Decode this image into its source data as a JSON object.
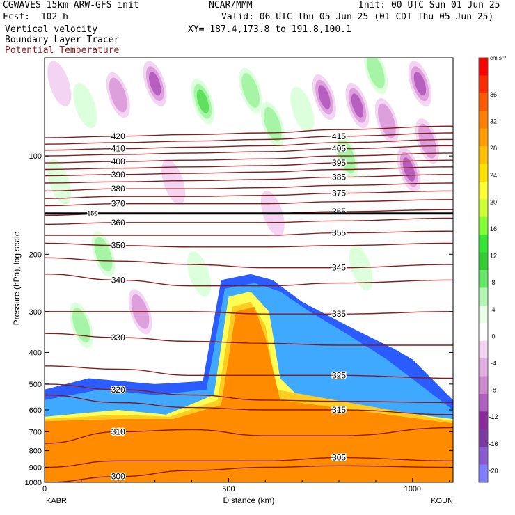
{
  "header": {
    "line1_left": "CGWAVES 15km ARW-GFS init",
    "line1_mid": "NCAR/MMM",
    "line1_right": "Init: 00 UTC Sun 01 Jun 25",
    "line2_left": "Fcst:  102 h",
    "line2_right": "Valid: 06 UTC Thu 05 Jun 25 (01 CDT Thu 05 Jun 25)",
    "line3_left": "Vertical velocity",
    "line3_right": "XY= 187.4,173.8 to 191.8,100.1",
    "line4_left": "Boundary Layer Tracer",
    "line5_left": "Potential Temperature"
  },
  "colors": {
    "theta": "#8b1a1a",
    "tracer_levels": [
      "#2a5cff",
      "#3fa9ff",
      "#6fd3ff",
      "#ffff55",
      "#ffcc22",
      "#ff8c00"
    ],
    "w_up": [
      "#dcffdc",
      "#a6f5a6",
      "#5fe05f",
      "#2fc92f"
    ],
    "w_down": [
      "#f3d4f3",
      "#dda0dd",
      "#b65fc0",
      "#8a2a9a"
    ]
  },
  "chart_data": {
    "type": "heatmap",
    "title": "Vertical velocity / Boundary Layer Tracer / Potential Temperature",
    "xlabel": "Distance (km)",
    "ylabel": "Pressure (hPa), log scale",
    "x_ticks": [
      0,
      500,
      1000
    ],
    "y_ticks": [
      100,
      200,
      300,
      400,
      500,
      600,
      700,
      800,
      900,
      1000
    ],
    "xlim": [
      0,
      1110
    ],
    "ylim": [
      1000,
      50
    ],
    "y_scale": "log",
    "endpoints": {
      "left": "KABR",
      "right": "KOUN"
    },
    "colorbar": {
      "unit": "cm s⁻¹",
      "labels": [
        36,
        32,
        28,
        24,
        20,
        16,
        12,
        8,
        4,
        0,
        -4,
        -8,
        -12,
        -16,
        -20
      ]
    },
    "tropopause_marker": {
      "label": "150",
      "pressure": 150
    },
    "theta_contours": [
      {
        "value": 300,
        "p": [
          1000,
          960,
          920,
          900,
          890,
          900
        ]
      },
      {
        "value": 305,
        "p": [
          900,
          860,
          860,
          860,
          840,
          860
        ]
      },
      {
        "value": 310,
        "p": [
          760,
          700,
          690,
          720,
          720,
          680
        ]
      },
      {
        "value": 315,
        "p": [
          540,
          570,
          590,
          600,
          600,
          620
        ]
      },
      {
        "value": 320,
        "p": [
          500,
          520,
          540,
          560,
          565,
          570
        ]
      },
      {
        "value": 325,
        "p": [
          440,
          450,
          470,
          470,
          470,
          480
        ]
      },
      {
        "value": 330,
        "p": [
          350,
          360,
          370,
          375,
          380,
          380
        ]
      },
      {
        "value": 335,
        "p": [
          300,
          300,
          300,
          305,
          305,
          300
        ]
      },
      {
        "value": 340,
        "p": [
          230,
          240,
          250,
          250,
          245,
          240
        ]
      },
      {
        "value": 345,
        "p": [
          205,
          210,
          215,
          220,
          220,
          215
        ]
      },
      {
        "value": 350,
        "p": [
          185,
          188,
          190,
          190,
          188,
          185
        ]
      },
      {
        "value": 355,
        "p": [
          175,
          175,
          175,
          175,
          172,
          170
        ]
      },
      {
        "value": 360,
        "p": [
          162,
          160,
          160,
          160,
          158,
          155
        ]
      },
      {
        "value": 365,
        "p": [
          152,
          150,
          150,
          150,
          148,
          146
        ]
      },
      {
        "value": 370,
        "p": [
          142,
          140,
          140,
          140,
          138,
          136
        ]
      },
      {
        "value": 375,
        "p": [
          135,
          133,
          133,
          132,
          130,
          128
        ]
      },
      {
        "value": 380,
        "p": [
          128,
          126,
          126,
          125,
          123,
          121
        ]
      },
      {
        "value": 385,
        "p": [
          121,
          120,
          119,
          118,
          116,
          114
        ]
      },
      {
        "value": 390,
        "p": [
          115,
          114,
          113,
          112,
          110,
          108
        ]
      },
      {
        "value": 395,
        "p": [
          110,
          109,
          108,
          107,
          105,
          103
        ]
      },
      {
        "value": 400,
        "p": [
          105,
          104,
          103,
          102,
          100,
          98
        ]
      },
      {
        "value": 405,
        "p": [
          100,
          99,
          98,
          97,
          95,
          93
        ]
      },
      {
        "value": 410,
        "p": [
          96,
          95,
          94,
          93,
          91,
          89
        ]
      },
      {
        "value": 415,
        "p": [
          92,
          91,
          90,
          89,
          87,
          85
        ]
      },
      {
        "value": 420,
        "p": [
          88,
          87,
          86,
          85,
          83,
          81
        ]
      }
    ],
    "theta_x": [
      0,
      200,
      400,
      600,
      800,
      1110
    ],
    "tracer_regions": [
      {
        "level": 0,
        "x": [
          0,
          120,
          300,
          430,
          480,
          560,
          620,
          700,
          820,
          950,
          1000,
          1110,
          1110,
          0
        ],
        "p": [
          520,
          480,
          500,
          490,
          240,
          230,
          240,
          280,
          330,
          390,
          420,
          560,
          1000,
          1000
        ]
      },
      {
        "level": 1,
        "x": [
          0,
          150,
          300,
          440,
          490,
          570,
          640,
          720,
          820,
          930,
          1110,
          1110,
          0
        ],
        "p": [
          560,
          520,
          540,
          520,
          255,
          245,
          260,
          300,
          350,
          420,
          600,
          1000,
          1000
        ]
      },
      {
        "level": 3,
        "x": [
          0,
          200,
          330,
          460,
          500,
          560,
          610,
          640,
          700,
          1110,
          1110,
          0
        ],
        "p": [
          630,
          600,
          620,
          540,
          270,
          260,
          300,
          480,
          560,
          640,
          1000,
          1000
        ]
      },
      {
        "level": 4,
        "x": [
          0,
          200,
          340,
          470,
          510,
          560,
          600,
          630,
          1110,
          1110,
          0
        ],
        "p": [
          640,
          620,
          630,
          560,
          290,
          280,
          330,
          520,
          650,
          1000,
          1000
        ]
      },
      {
        "level": 5,
        "x": [
          0,
          200,
          350,
          480,
          520,
          570,
          600,
          640,
          1110,
          1110,
          0
        ],
        "p": [
          650,
          640,
          640,
          580,
          300,
          290,
          360,
          560,
          660,
          1000,
          1000
        ]
      }
    ],
    "w_cells": [
      {
        "x": 430,
        "p": 68,
        "s": 3
      },
      {
        "x": 560,
        "p": 63,
        "s": 2
      },
      {
        "x": 620,
        "p": 80,
        "s": 2
      },
      {
        "x": 300,
        "p": 60,
        "s": -3
      },
      {
        "x": 200,
        "p": 65,
        "s": -2
      },
      {
        "x": 760,
        "p": 66,
        "s": -3
      },
      {
        "x": 850,
        "p": 70,
        "s": -3
      },
      {
        "x": 930,
        "p": 78,
        "s": -2
      },
      {
        "x": 1020,
        "p": 60,
        "s": -3
      },
      {
        "x": 1040,
        "p": 90,
        "s": -2
      },
      {
        "x": 990,
        "p": 110,
        "s": -3
      },
      {
        "x": 820,
        "p": 100,
        "s": 2
      },
      {
        "x": 700,
        "p": 72,
        "s": 1
      },
      {
        "x": 900,
        "p": 55,
        "s": 2
      },
      {
        "x": 110,
        "p": 70,
        "s": 1
      },
      {
        "x": 40,
        "p": 60,
        "s": -1
      },
      {
        "x": 40,
        "p": 120,
        "s": 1
      },
      {
        "x": 160,
        "p": 200,
        "s": 2
      },
      {
        "x": 100,
        "p": 330,
        "s": 2
      },
      {
        "x": 260,
        "p": 300,
        "s": -2
      },
      {
        "x": 420,
        "p": 230,
        "s": 1
      },
      {
        "x": 860,
        "p": 220,
        "s": 1
      },
      {
        "x": 620,
        "p": 150,
        "s": -1
      },
      {
        "x": 350,
        "p": 120,
        "s": -1
      }
    ]
  },
  "labels": {
    "x_axis": "Distance (km)",
    "y_axis": "Pressure (hPa), log scale",
    "left_station": "KABR",
    "right_station": "KOUN",
    "colorbar_unit": "cm s⁻¹",
    "trop_marker": "150"
  }
}
